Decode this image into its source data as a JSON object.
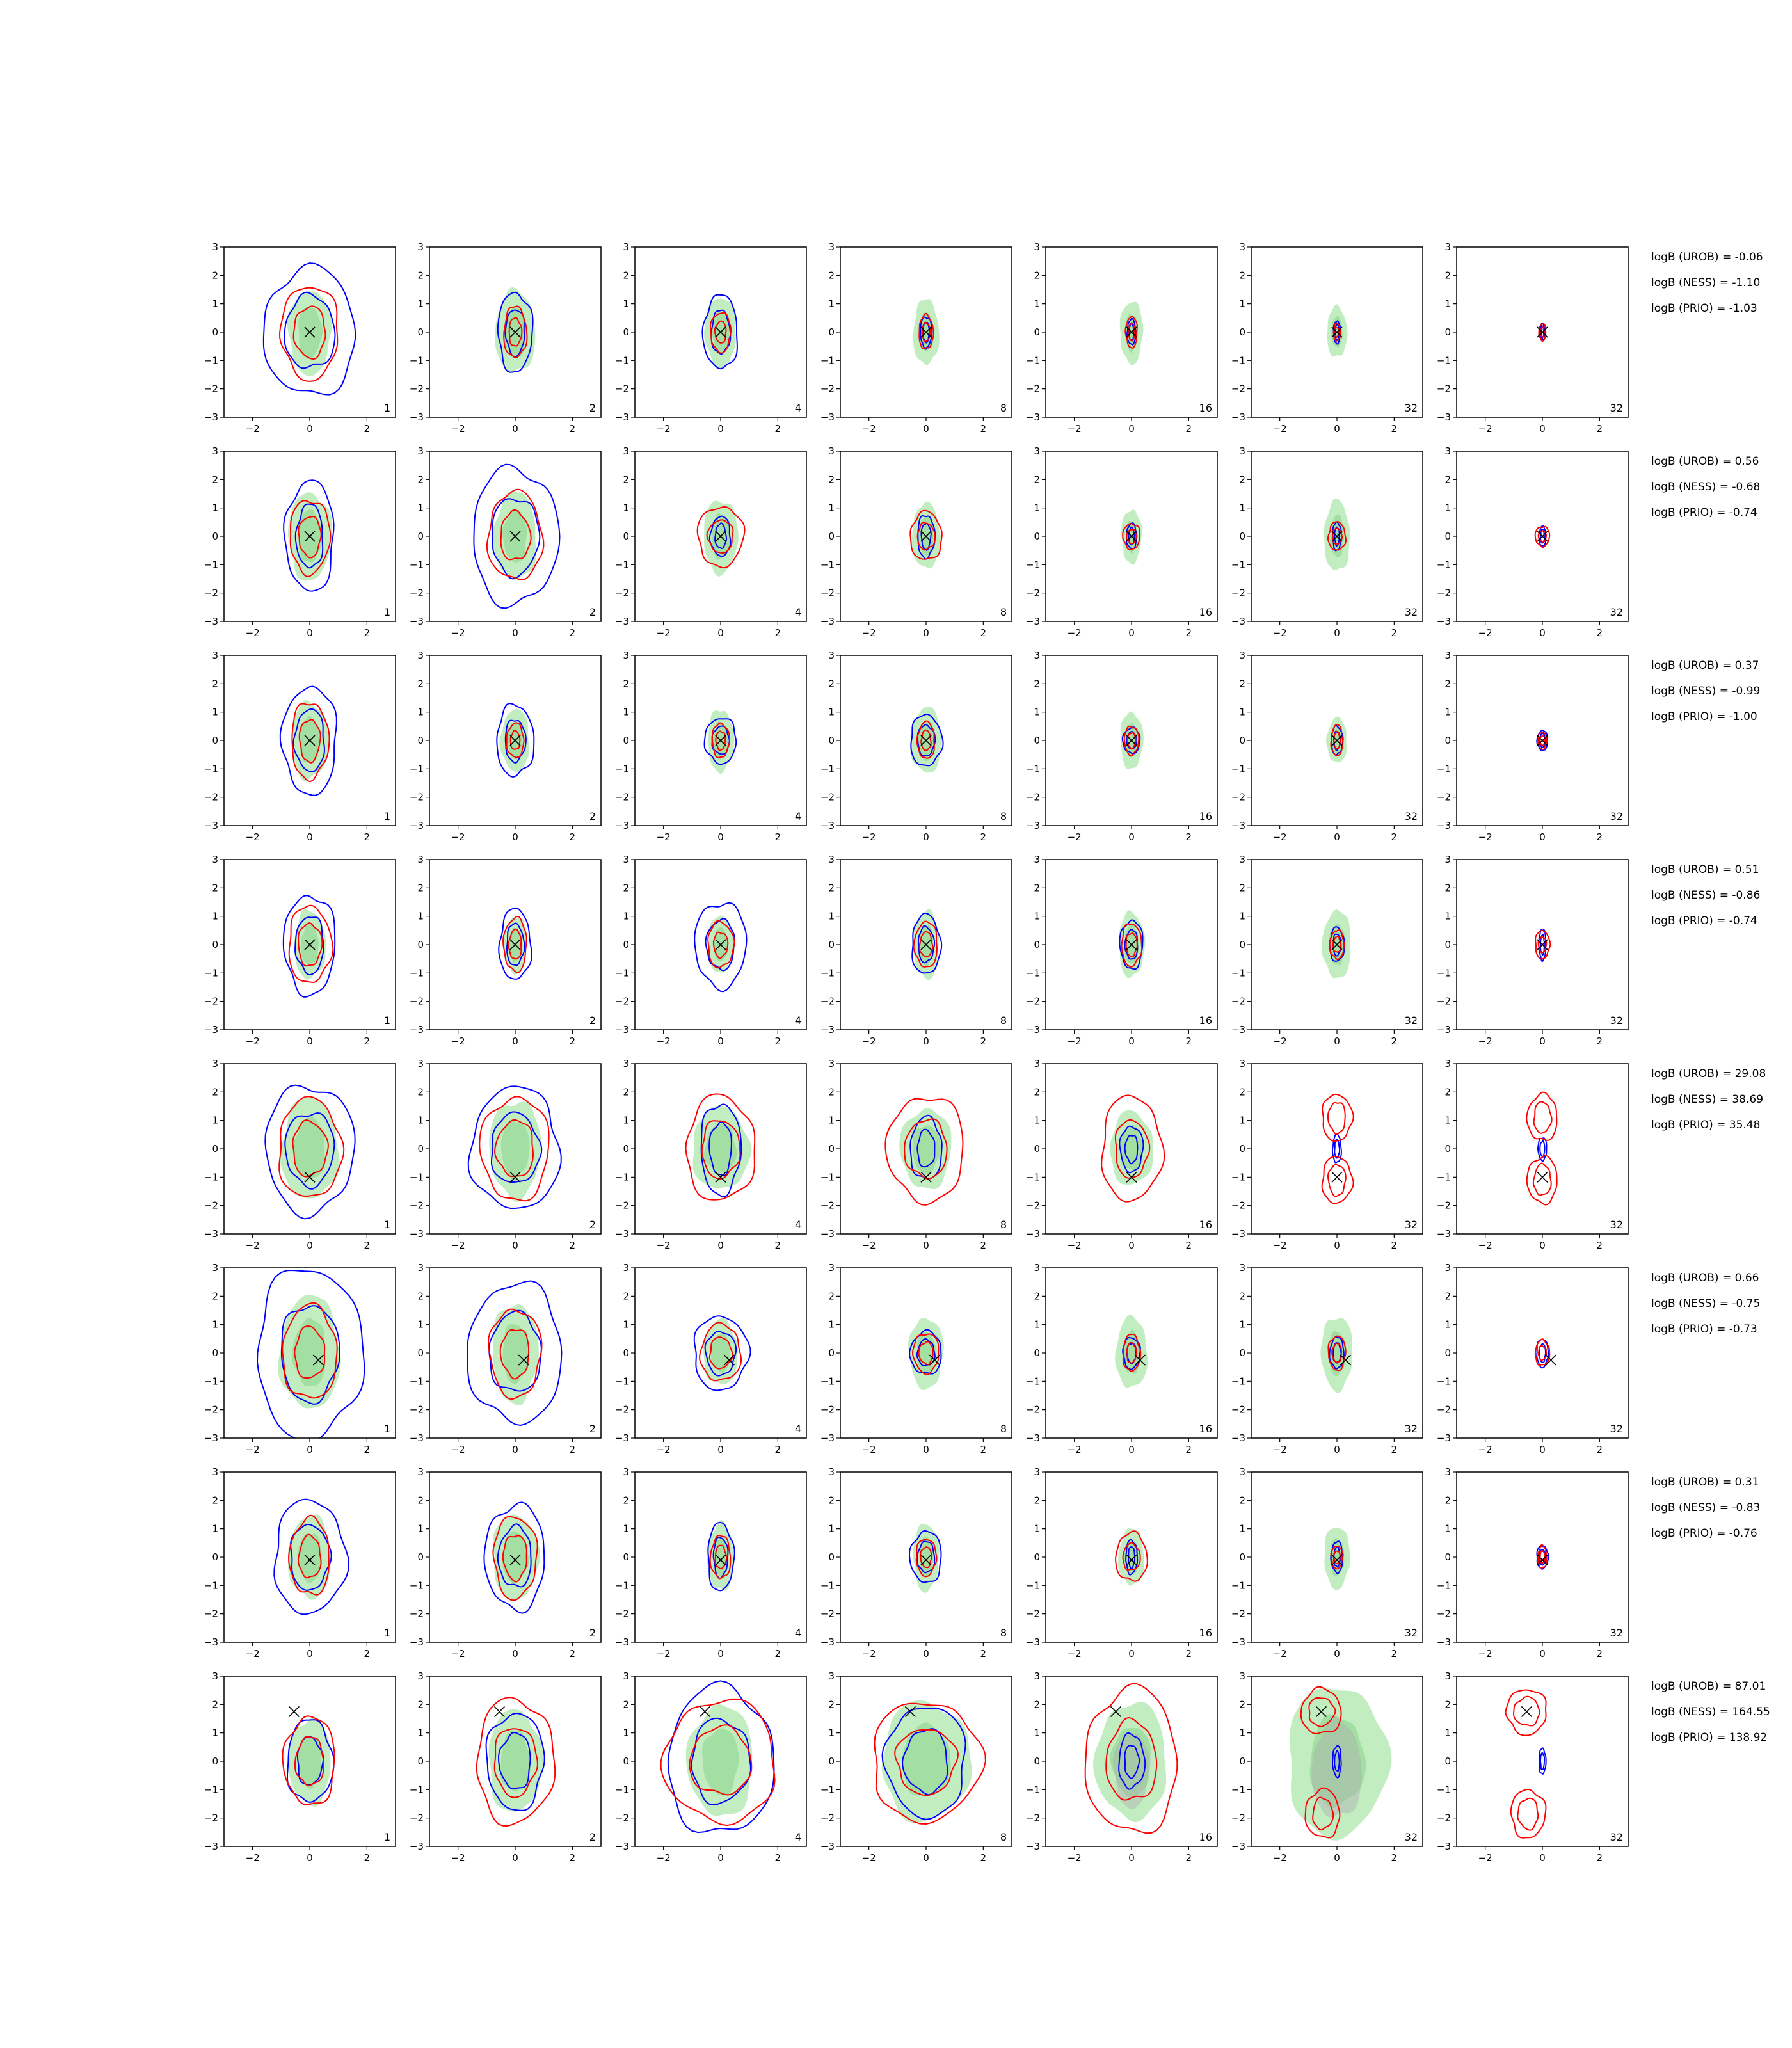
{
  "colors": {
    "reference_fill": "#a6e6a6",
    "reference_fill_inner": "#8fd58f",
    "contour_blue": "#0000ff",
    "contour_red": "#ff0000",
    "true_marker": "#000000",
    "gray_fill": "#b0b0b0"
  },
  "chart_data": {
    "type": "contour-grid",
    "xlim": [
      -3,
      3
    ],
    "ylim": [
      -3,
      3
    ],
    "xticks": [
      "−2",
      "0",
      "2"
    ],
    "yticks": [
      "3",
      "2",
      "1",
      "0",
      "−1",
      "−2",
      "−3"
    ],
    "column_labels": [
      "1",
      "2",
      "4",
      "8",
      "16",
      "32",
      "32"
    ],
    "rows": [
      {
        "marker": [
          0,
          0
        ],
        "logB": [
          "logB (UROB) = -0.06",
          "logB (NESS) = -1.10",
          "logB (PRIO) = -1.03"
        ],
        "reference": [
          0.75,
          1.5,
          0.7,
          1.45,
          0.55,
          1.25,
          0.45,
          1.15,
          0.4,
          1.1,
          0.35,
          0.9,
          0,
          0
        ],
        "blue": [
          [
            1.6,
            2.25
          ],
          [
            0.6,
            1.4
          ],
          [
            0.6,
            1.3
          ],
          [
            0.2,
            0.55
          ],
          [
            0.15,
            0.45
          ],
          [
            0.12,
            0.4
          ],
          [
            0.08,
            0.3
          ]
        ],
        "red": [
          [
            1.0,
            1.65
          ],
          [
            0.4,
            0.9
          ],
          [
            0.35,
            0.7
          ],
          [
            0.25,
            0.6
          ],
          [
            0.2,
            0.55
          ],
          [
            0.12,
            0.3
          ],
          [
            0.12,
            0.3
          ]
        ]
      },
      {
        "marker": [
          0,
          0
        ],
        "logB": [
          "logB (UROB) = 0.56",
          "logB (NESS) = -0.68",
          "logB (PRIO) = -0.74"
        ],
        "reference": [
          0.75,
          1.55,
          0.75,
          1.55,
          0.6,
          1.3,
          0.5,
          1.15,
          0.35,
          0.95,
          0.45,
          1.25,
          0,
          0
        ],
        "blue": [
          [
            0.85,
            1.95
          ],
          [
            1.5,
            2.4
          ],
          [
            0.35,
            0.7
          ],
          [
            0.3,
            0.75
          ],
          [
            0.18,
            0.45
          ],
          [
            0.15,
            0.5
          ],
          [
            0.12,
            0.35
          ]
        ],
        "red": [
          [
            0.7,
            1.3
          ],
          [
            0.95,
            1.55
          ],
          [
            0.8,
            1.05
          ],
          [
            0.55,
            0.85
          ],
          [
            0.3,
            0.45
          ],
          [
            0.3,
            0.5
          ],
          [
            0.25,
            0.35
          ]
        ]
      },
      {
        "marker": [
          0,
          0
        ],
        "logB": [
          "logB (UROB) = 0.37",
          "logB (NESS) = -0.99",
          "logB (PRIO) = -1.00"
        ],
        "reference": [
          0.65,
          1.35,
          0.5,
          1.1,
          0.45,
          1.1,
          0.55,
          1.15,
          0.4,
          1.0,
          0.35,
          0.8,
          0,
          0
        ],
        "blue": [
          [
            0.95,
            1.9
          ],
          [
            0.65,
            1.25
          ],
          [
            0.55,
            0.8
          ],
          [
            0.55,
            0.9
          ],
          [
            0.3,
            0.45
          ],
          [
            0.2,
            0.5
          ],
          [
            0.18,
            0.35
          ]
        ],
        "red": [
          [
            0.65,
            1.35
          ],
          [
            0.3,
            0.6
          ],
          [
            0.3,
            0.6
          ],
          [
            0.3,
            0.65
          ],
          [
            0.25,
            0.5
          ],
          [
            0.2,
            0.55
          ],
          [
            0.15,
            0.3
          ]
        ]
      },
      {
        "marker": [
          0,
          0
        ],
        "logB": [
          "logB (UROB) = 0.51",
          "logB (NESS) = -0.86",
          "logB (PRIO) = -0.74"
        ],
        "reference": [
          0.55,
          1.2,
          0.4,
          1.0,
          0.45,
          1.0,
          0.45,
          1.2,
          0.45,
          1.15,
          0.5,
          1.2,
          0,
          0
        ],
        "blue": [
          [
            0.9,
            1.75
          ],
          [
            0.55,
            1.25
          ],
          [
            0.9,
            1.5
          ],
          [
            0.5,
            1.05
          ],
          [
            0.4,
            0.85
          ],
          [
            0.25,
            0.6
          ],
          [
            0.12,
            0.55
          ]
        ],
        "red": [
          [
            0.75,
            1.35
          ],
          [
            0.4,
            0.95
          ],
          [
            0.45,
            0.8
          ],
          [
            0.4,
            0.8
          ],
          [
            0.35,
            0.75
          ],
          [
            0.25,
            0.5
          ],
          [
            0.25,
            0.5
          ]
        ]
      },
      {
        "marker": [
          0,
          -1
        ],
        "logB": [
          "logB (UROB) = 29.08",
          "logB (NESS) = 38.69",
          "logB (PRIO) = 35.48"
        ],
        "reference": [
          1.0,
          1.8,
          0.9,
          1.7,
          1.0,
          1.45,
          0.9,
          1.4,
          0.75,
          1.3,
          0,
          0,
          0,
          0
        ],
        "blue": [
          [
            1.55,
            2.25
          ],
          [
            1.55,
            2.15
          ],
          [
            0.7,
            1.6
          ],
          [
            0.55,
            1.1
          ],
          [
            0.4,
            0.8
          ],
          [
            0.15,
            0.5
          ],
          [
            0.15,
            0.4
          ]
        ],
        "red": [
          [
            1.1,
            1.75
          ],
          [
            1.2,
            1.8
          ],
          [
            1.2,
            1.85
          ],
          [
            1.35,
            1.85
          ],
          [
            1.05,
            1.85
          ],
          [
            0,
            0
          ],
          [
            0,
            0
          ]
        ],
        "red_bimodal": true
      },
      {
        "marker": [
          0.3,
          -0.25
        ],
        "logB": [
          "logB (UROB) = 0.66",
          "logB (NESS) = -0.75",
          "logB (PRIO) = -0.73"
        ],
        "reference": [
          1.05,
          2.0,
          0.8,
          1.75,
          0.6,
          1.15,
          0.6,
          1.25,
          0.55,
          1.25,
          0.55,
          1.3,
          0,
          0
        ],
        "blue": [
          [
            1.85,
            3.0
          ],
          [
            1.65,
            2.45
          ],
          [
            0.95,
            1.3
          ],
          [
            0.55,
            0.75
          ],
          [
            0.3,
            0.55
          ],
          [
            0.25,
            0.55
          ],
          [
            0.2,
            0.5
          ]
        ],
        "red": [
          [
            0.95,
            1.65
          ],
          [
            0.9,
            1.55
          ],
          [
            0.7,
            1.0
          ],
          [
            0.45,
            0.7
          ],
          [
            0.3,
            0.65
          ],
          [
            0.3,
            0.6
          ],
          [
            0.25,
            0.45
          ]
        ]
      },
      {
        "marker": [
          0,
          -0.1
        ],
        "logB": [
          "logB (UROB) = 0.31",
          "logB (NESS) = -0.83",
          "logB (PRIO) = -0.76"
        ],
        "reference": [
          0.75,
          1.45,
          0.8,
          1.5,
          0.45,
          1.2,
          0.45,
          1.2,
          0.45,
          1.0,
          0.45,
          1.1,
          0,
          0
        ],
        "blue": [
          [
            1.25,
            2.0
          ],
          [
            1.05,
            1.85
          ],
          [
            0.45,
            1.2
          ],
          [
            0.55,
            0.9
          ],
          [
            0.2,
            0.6
          ],
          [
            0.2,
            0.55
          ],
          [
            0.2,
            0.4
          ]
        ],
        "red": [
          [
            0.7,
            1.35
          ],
          [
            0.75,
            1.45
          ],
          [
            0.35,
            0.75
          ],
          [
            0.35,
            0.65
          ],
          [
            0.55,
            0.85
          ],
          [
            0.2,
            0.4
          ],
          [
            0.15,
            0.4
          ]
        ]
      },
      {
        "marker": [
          -0.55,
          1.75
        ],
        "logB": [
          "logB (UROB) = 87.01",
          "logB (NESS) = 164.55",
          "logB (PRIO) = 138.92"
        ],
        "reference": [
          0.75,
          1.5,
          0.95,
          1.8,
          1.15,
          1.95,
          1.55,
          2.1,
          1.25,
          2.05,
          1.75,
          2.65,
          0,
          0
        ],
        "blue": [
          [
            0.8,
            1.45
          ],
          [
            1.0,
            1.7
          ],
          [
            1.85,
            2.6
          ],
          [
            1.4,
            1.95
          ],
          [
            0.45,
            0.95
          ],
          [
            0.15,
            0.55
          ],
          [
            0.12,
            0.45
          ]
        ],
        "red": [
          [
            0.9,
            1.55
          ],
          [
            1.35,
            2.2
          ],
          [
            1.95,
            2.15
          ],
          [
            1.9,
            2.1
          ],
          [
            1.6,
            2.55
          ],
          [
            0,
            0
          ],
          [
            0,
            0
          ]
        ],
        "red_bimodal": true
      }
    ]
  }
}
